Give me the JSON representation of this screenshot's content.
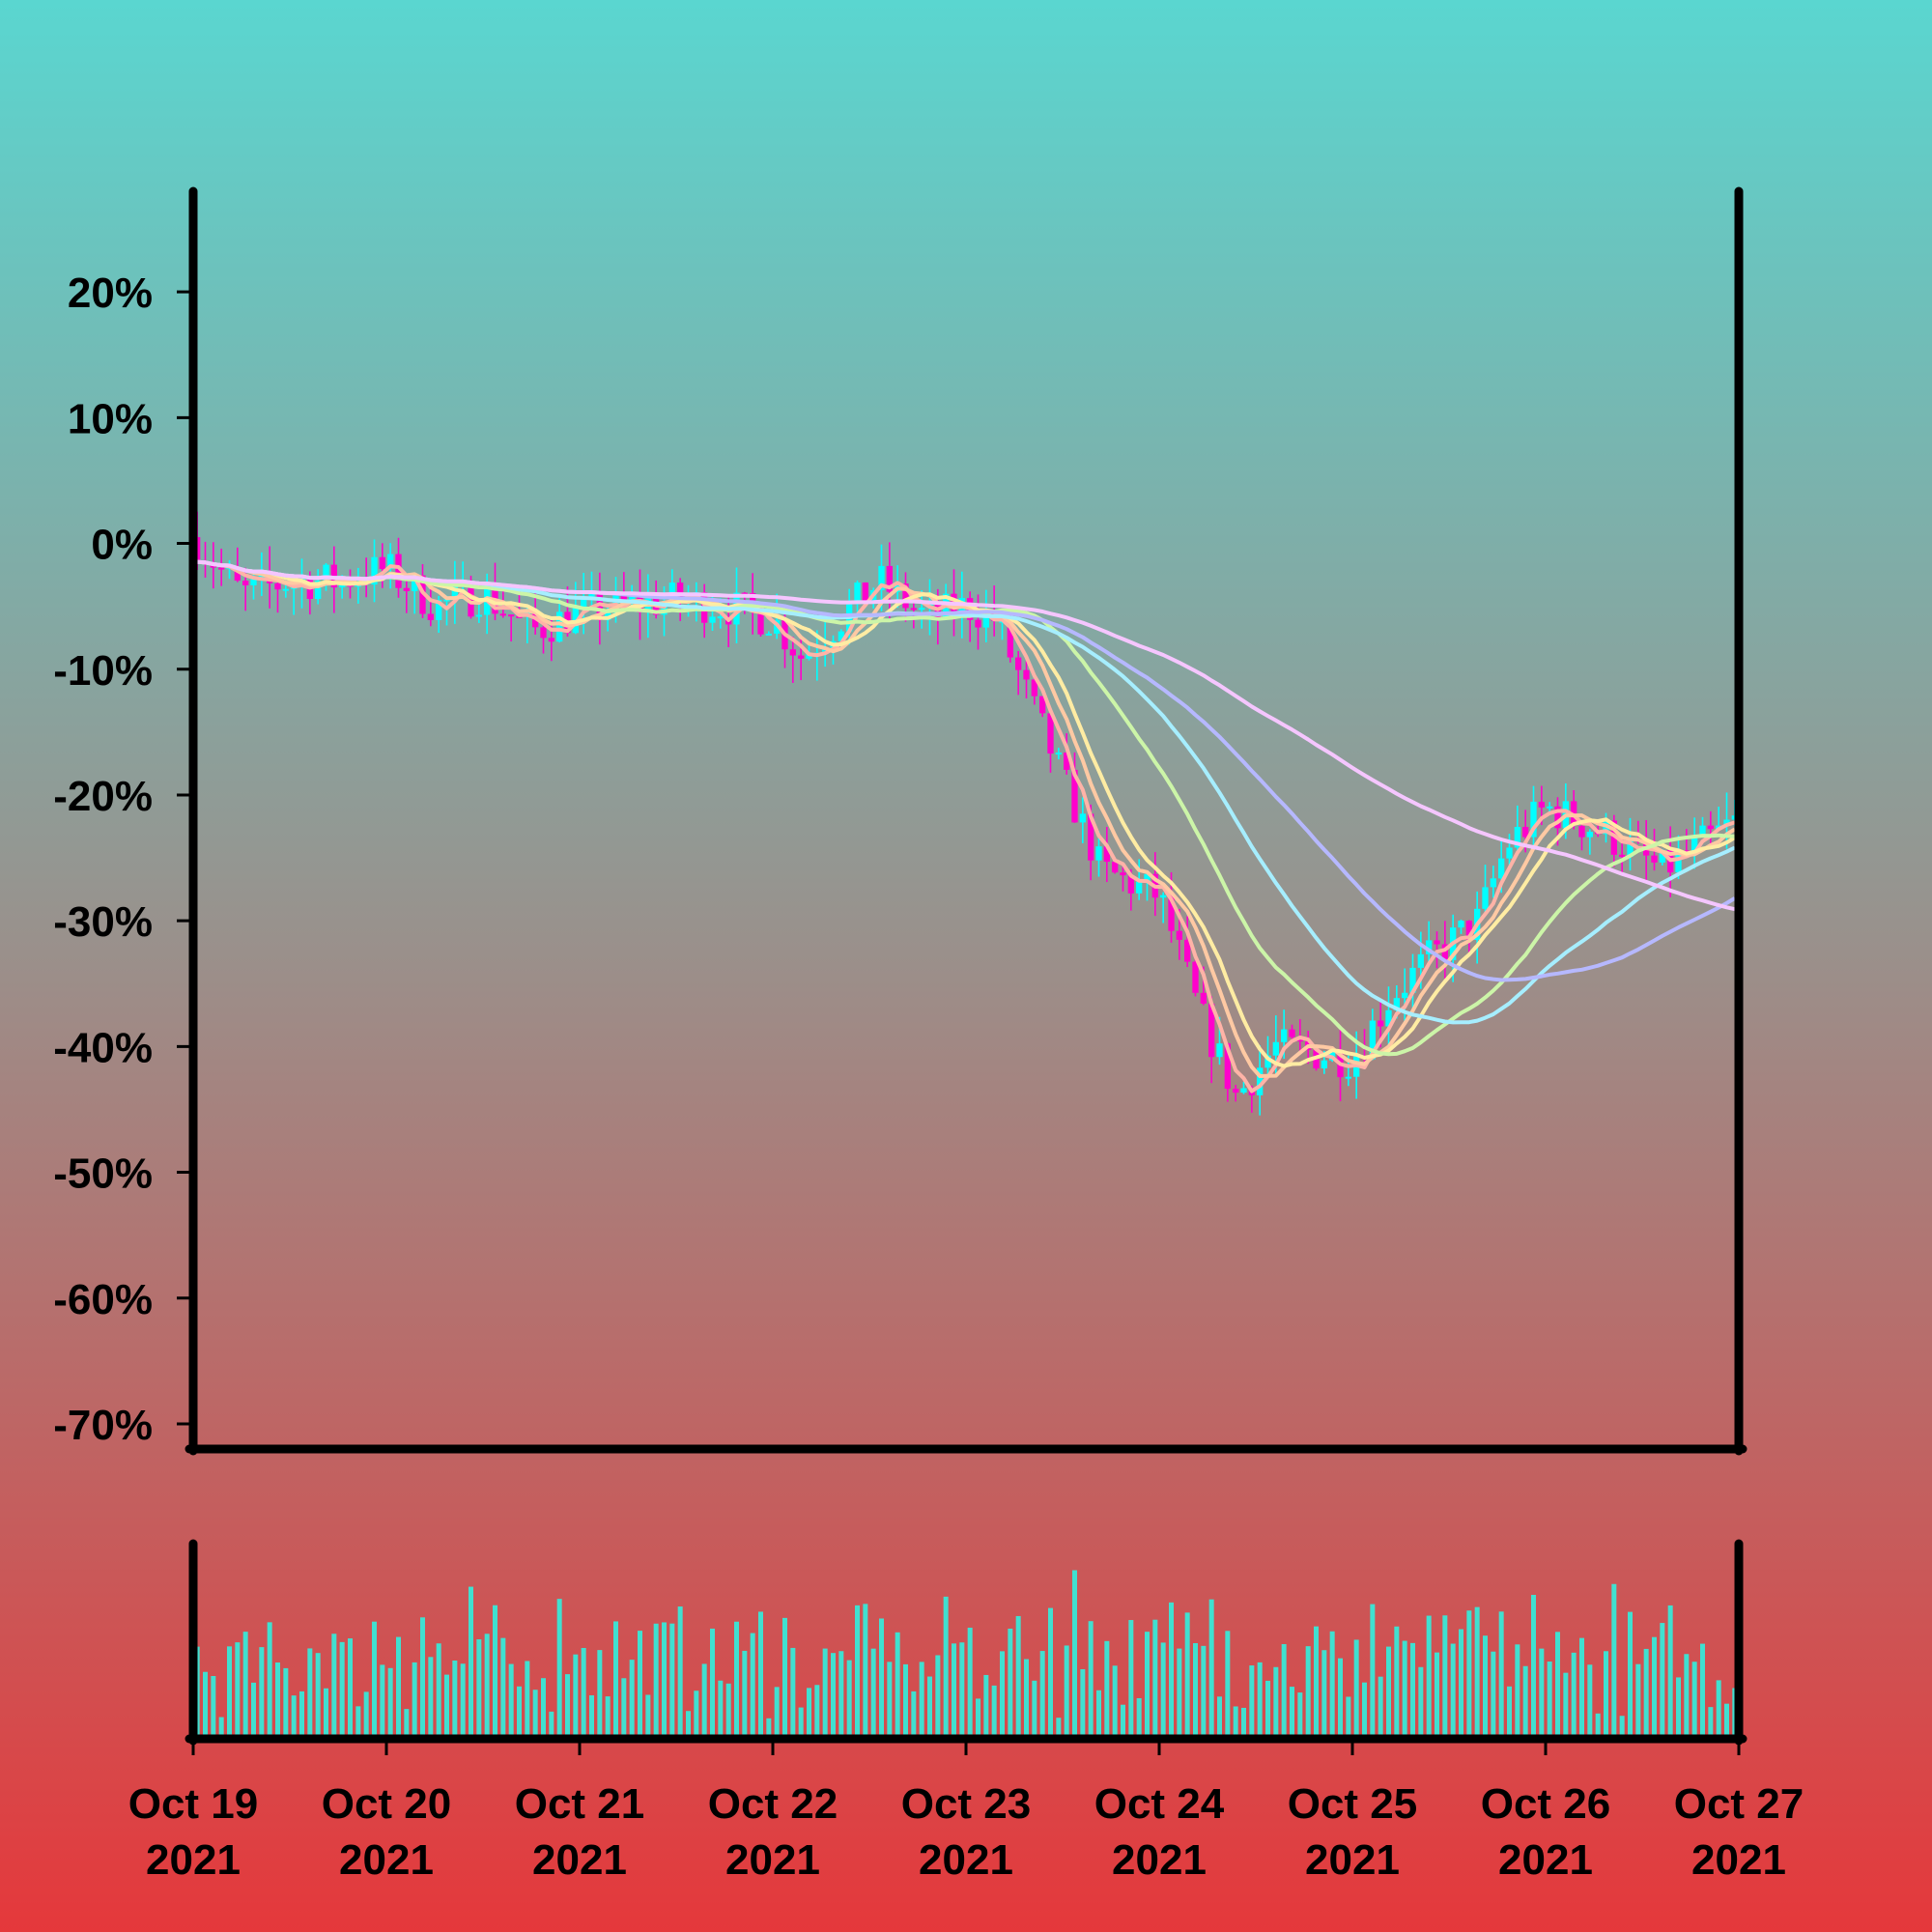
{
  "background": {
    "top_color": "#5ad6d0",
    "bottom_color": "#e5383b"
  },
  "chart_data": {
    "type": "candlestick",
    "title": "",
    "xlabel": "",
    "ylabel": "",
    "ylim": [
      -72,
      28
    ],
    "y_ticks": [
      20,
      10,
      0,
      -10,
      -20,
      -30,
      -40,
      -50,
      -60,
      -70
    ],
    "y_tick_labels": [
      "20%",
      "10%",
      "0%",
      "-10%",
      "-20%",
      "-30%",
      "-40%",
      "-50%",
      "-60%",
      "-70%"
    ],
    "x_range": [
      "2021-10-19",
      "2021-10-27"
    ],
    "x_ticks": [
      {
        "line1": "Oct 19",
        "line2": "2021",
        "day": 0
      },
      {
        "line1": "Oct 20",
        "line2": "2021",
        "day": 1
      },
      {
        "line1": "Oct 21",
        "line2": "2021",
        "day": 2
      },
      {
        "line1": "Oct 22",
        "line2": "2021",
        "day": 3
      },
      {
        "line1": "Oct 23",
        "line2": "2021",
        "day": 4
      },
      {
        "line1": "Oct 24",
        "line2": "2021",
        "day": 5
      },
      {
        "line1": "Oct 25",
        "line2": "2021",
        "day": 6
      },
      {
        "line1": "Oct 26",
        "line2": "2021",
        "day": 7
      },
      {
        "line1": "Oct 27",
        "line2": "2021",
        "day": 8
      }
    ],
    "candles_per_day": 24,
    "price_path": [
      [
        0,
        0.5
      ],
      [
        0.25,
        -4
      ],
      [
        0.5,
        -3
      ],
      [
        0.75,
        -3
      ],
      [
        1,
        -2
      ],
      [
        1.25,
        -5
      ],
      [
        1.5,
        -4
      ],
      [
        1.75,
        -7
      ],
      [
        2,
        -5.5
      ],
      [
        2.25,
        -5
      ],
      [
        2.5,
        -4.5
      ],
      [
        2.75,
        -5
      ],
      [
        3,
        -6
      ],
      [
        3.15,
        -9
      ],
      [
        3.35,
        -6
      ],
      [
        3.55,
        -3
      ],
      [
        3.8,
        -6
      ],
      [
        4,
        -5
      ],
      [
        4.15,
        -6
      ],
      [
        4.4,
        -15
      ],
      [
        4.7,
        -26
      ],
      [
        5,
        -28
      ],
      [
        5.2,
        -37
      ],
      [
        5.4,
        -44
      ],
      [
        5.6,
        -40
      ],
      [
        6,
        -41
      ],
      [
        6.2,
        -36
      ],
      [
        6.4,
        -33
      ],
      [
        6.65,
        -30
      ],
      [
        6.8,
        -24
      ],
      [
        7,
        -21
      ],
      [
        7.3,
        -23
      ],
      [
        7.6,
        -26
      ],
      [
        7.8,
        -24
      ],
      [
        8,
        -22
      ]
    ],
    "moving_averages": [
      {
        "color": "#ffb3a7",
        "window": 4
      },
      {
        "color": "#ffc9a3",
        "window": 7
      },
      {
        "color": "#ffeca3",
        "window": 10
      },
      {
        "color": "#ccf5a8",
        "window": 24
      },
      {
        "color": "#a6eeff",
        "window": 36
      },
      {
        "color": "#b6b8ff",
        "window": 52
      },
      {
        "color": "#f5c6ff",
        "window": 90
      }
    ],
    "up_color": "#00ffff",
    "down_color": "#ff00cc",
    "volume_color": "#40e0d0",
    "grid": false,
    "legend": "none"
  }
}
